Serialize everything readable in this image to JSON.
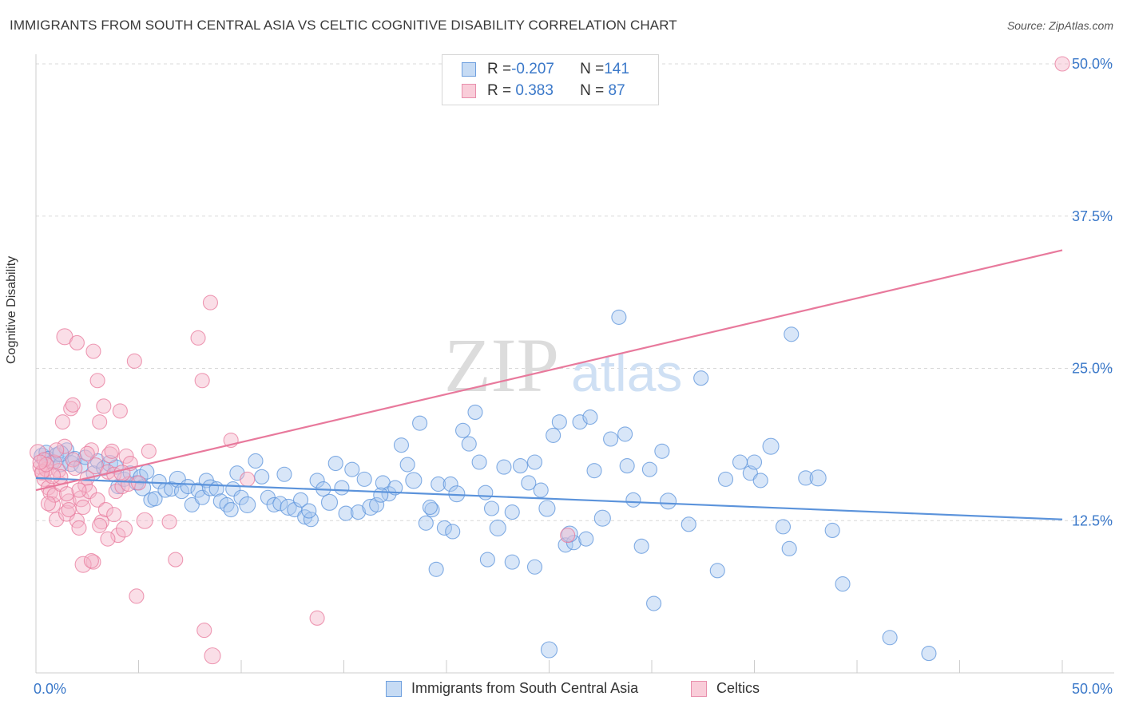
{
  "title": "IMMIGRANTS FROM SOUTH CENTRAL ASIA VS CELTIC COGNITIVE DISABILITY CORRELATION CHART",
  "source": "Source: ZipAtlas.com",
  "watermark": {
    "zip": "ZIP",
    "atlas": "atlas"
  },
  "legend": {
    "rows": [
      {
        "r_label": "R = ",
        "r_value": "-0.207",
        "n_label": "N = ",
        "n_value": "141",
        "color": "#a9c8ef"
      },
      {
        "r_label": "R = ",
        "r_value": " 0.383",
        "n_label": "N = ",
        "n_value": " 87",
        "color": "#f5b6c9"
      }
    ]
  },
  "bottom_legend": [
    {
      "label": "Immigrants from South Central Asia",
      "color": "#a9c8ef"
    },
    {
      "label": "Celtics",
      "color": "#f5b6c9"
    }
  ],
  "chart_data": {
    "type": "scatter",
    "title": "IMMIGRANTS FROM SOUTH CENTRAL ASIA VS CELTIC COGNITIVE DISABILITY CORRELATION CHART",
    "xlabel": "",
    "ylabel": "Cognitive Disability",
    "xlim": [
      0,
      50
    ],
    "ylim": [
      0,
      50
    ],
    "x_tick_labels": [
      "0.0%",
      "50.0%"
    ],
    "y_tick_values": [
      12.5,
      25.0,
      37.5,
      50.0
    ],
    "y_tick_labels": [
      "12.5%",
      "25.0%",
      "37.5%",
      "50.0%"
    ],
    "grid": true,
    "legend_position": "top-center",
    "series": [
      {
        "name": "Immigrants from South Central Asia",
        "color": "#5b93db",
        "fill": "#a9c8ef",
        "trend": {
          "x": [
            0,
            50
          ],
          "y": [
            16.0,
            12.6
          ]
        },
        "points": [
          [
            0.3,
            17.8
          ],
          [
            0.5,
            18.1
          ],
          [
            0.6,
            17.6
          ],
          [
            0.8,
            17.3
          ],
          [
            1.0,
            17.9
          ],
          [
            1.2,
            17.1
          ],
          [
            1.5,
            18.3
          ],
          [
            1.7,
            17.2
          ],
          [
            1.9,
            17.6
          ],
          [
            2.2,
            17.0
          ],
          [
            2.4,
            17.7
          ],
          [
            2.8,
            16.4
          ],
          [
            3.0,
            17.4
          ],
          [
            3.3,
            16.8
          ],
          [
            3.6,
            17.2
          ],
          [
            3.9,
            16.9
          ],
          [
            4.0,
            15.3
          ],
          [
            4.3,
            15.9
          ],
          [
            4.6,
            16.4
          ],
          [
            4.9,
            15.6
          ],
          [
            5.1,
            16.1
          ],
          [
            5.2,
            15.2
          ],
          [
            5.4,
            16.5
          ],
          [
            5.6,
            14.2
          ],
          [
            5.8,
            14.3
          ],
          [
            6.0,
            15.7
          ],
          [
            6.3,
            15.0
          ],
          [
            6.6,
            15.1
          ],
          [
            6.9,
            15.9
          ],
          [
            7.1,
            14.9
          ],
          [
            7.4,
            15.3
          ],
          [
            7.6,
            13.8
          ],
          [
            7.9,
            15.0
          ],
          [
            8.1,
            14.4
          ],
          [
            8.3,
            15.8
          ],
          [
            8.5,
            15.2
          ],
          [
            8.8,
            15.1
          ],
          [
            9.0,
            14.1
          ],
          [
            9.3,
            13.8
          ],
          [
            9.6,
            15.1
          ],
          [
            9.8,
            16.4
          ],
          [
            10.0,
            14.4
          ],
          [
            10.3,
            13.8
          ],
          [
            10.7,
            17.4
          ],
          [
            11.0,
            16.1
          ],
          [
            11.3,
            14.4
          ],
          [
            11.6,
            13.8
          ],
          [
            11.9,
            13.9
          ],
          [
            12.1,
            16.3
          ],
          [
            12.3,
            13.6
          ],
          [
            12.6,
            13.4
          ],
          [
            12.9,
            14.2
          ],
          [
            13.1,
            12.8
          ],
          [
            13.4,
            12.6
          ],
          [
            13.7,
            15.8
          ],
          [
            14.0,
            15.1
          ],
          [
            14.3,
            14.0
          ],
          [
            14.6,
            17.2
          ],
          [
            14.9,
            15.2
          ],
          [
            15.1,
            13.1
          ],
          [
            15.4,
            16.7
          ],
          [
            15.7,
            13.2
          ],
          [
            16.0,
            15.9
          ],
          [
            16.3,
            13.6
          ],
          [
            16.6,
            13.8
          ],
          [
            16.9,
            15.6
          ],
          [
            17.2,
            14.7
          ],
          [
            17.5,
            15.2
          ],
          [
            17.8,
            18.7
          ],
          [
            18.1,
            17.1
          ],
          [
            18.4,
            15.8
          ],
          [
            18.7,
            20.5
          ],
          [
            19.0,
            12.3
          ],
          [
            19.3,
            13.4
          ],
          [
            19.6,
            15.5
          ],
          [
            19.9,
            11.9
          ],
          [
            20.2,
            15.5
          ],
          [
            20.5,
            14.7
          ],
          [
            20.8,
            19.9
          ],
          [
            21.1,
            18.8
          ],
          [
            21.4,
            21.4
          ],
          [
            21.6,
            17.3
          ],
          [
            21.9,
            14.8
          ],
          [
            22.2,
            13.5
          ],
          [
            22.5,
            11.9
          ],
          [
            22.8,
            16.9
          ],
          [
            23.2,
            13.2
          ],
          [
            23.6,
            17.0
          ],
          [
            24.0,
            15.6
          ],
          [
            24.3,
            17.3
          ],
          [
            24.6,
            15.0
          ],
          [
            24.9,
            13.5
          ],
          [
            25.2,
            19.5
          ],
          [
            25.5,
            20.6
          ],
          [
            25.8,
            10.5
          ],
          [
            26.2,
            10.7
          ],
          [
            26.5,
            20.6
          ],
          [
            27.2,
            16.6
          ],
          [
            27.6,
            12.7
          ],
          [
            28.0,
            19.2
          ],
          [
            28.4,
            29.2
          ],
          [
            28.7,
            19.6
          ],
          [
            29.1,
            14.2
          ],
          [
            29.5,
            10.4
          ],
          [
            29.9,
            16.7
          ],
          [
            30.8,
            14.1
          ],
          [
            31.8,
            12.2
          ],
          [
            32.4,
            24.2
          ],
          [
            33.6,
            15.9
          ],
          [
            34.3,
            17.3
          ],
          [
            34.8,
            16.4
          ],
          [
            35.3,
            15.8
          ],
          [
            35.8,
            18.6
          ],
          [
            36.4,
            12.0
          ],
          [
            36.7,
            10.2
          ],
          [
            37.5,
            16.0
          ],
          [
            39.3,
            7.3
          ],
          [
            41.6,
            2.9
          ],
          [
            43.5,
            1.6
          ],
          [
            25.0,
            1.9
          ],
          [
            9.5,
            13.4
          ],
          [
            13.3,
            13.3
          ],
          [
            16.8,
            14.6
          ],
          [
            19.2,
            13.6
          ],
          [
            22.0,
            9.3
          ],
          [
            24.3,
            8.7
          ],
          [
            26.0,
            11.4
          ],
          [
            27.0,
            21.0
          ],
          [
            28.8,
            17.0
          ],
          [
            30.5,
            18.2
          ],
          [
            30.1,
            5.7
          ],
          [
            33.2,
            8.4
          ],
          [
            36.8,
            27.8
          ],
          [
            38.1,
            16.0
          ],
          [
            38.8,
            11.7
          ],
          [
            35.0,
            17.3
          ],
          [
            20.3,
            11.6
          ],
          [
            19.5,
            8.5
          ],
          [
            23.2,
            9.1
          ],
          [
            26.8,
            11.0
          ],
          [
            1.2,
            18.0
          ]
        ]
      },
      {
        "name": "Celtics",
        "color": "#e8799c",
        "fill": "#f5b6c9",
        "trend": {
          "x": [
            0,
            50
          ],
          "y": [
            15.0,
            34.7
          ]
        },
        "points": [
          [
            0.1,
            18.1
          ],
          [
            0.2,
            16.9
          ],
          [
            0.3,
            16.4
          ],
          [
            0.4,
            15.9
          ],
          [
            0.5,
            16.7
          ],
          [
            0.6,
            15.2
          ],
          [
            0.7,
            14.8
          ],
          [
            0.8,
            13.8
          ],
          [
            0.9,
            14.6
          ],
          [
            1.0,
            12.6
          ],
          [
            1.1,
            16.6
          ],
          [
            1.2,
            15.5
          ],
          [
            1.3,
            20.6
          ],
          [
            1.4,
            18.6
          ],
          [
            1.5,
            13.1
          ],
          [
            1.6,
            14.1
          ],
          [
            1.7,
            21.7
          ],
          [
            1.8,
            17.5
          ],
          [
            1.9,
            16.8
          ],
          [
            2.0,
            12.5
          ],
          [
            2.1,
            11.9
          ],
          [
            2.2,
            14.3
          ],
          [
            2.3,
            13.6
          ],
          [
            2.4,
            15.4
          ],
          [
            2.5,
            16.0
          ],
          [
            2.6,
            14.9
          ],
          [
            2.7,
            18.3
          ],
          [
            2.8,
            9.1
          ],
          [
            2.9,
            17.0
          ],
          [
            3.0,
            14.2
          ],
          [
            3.1,
            20.6
          ],
          [
            3.2,
            12.4
          ],
          [
            3.3,
            21.9
          ],
          [
            3.4,
            13.4
          ],
          [
            3.5,
            16.5
          ],
          [
            3.6,
            17.9
          ],
          [
            3.7,
            18.2
          ],
          [
            3.8,
            16.3
          ],
          [
            3.9,
            14.9
          ],
          [
            4.0,
            11.3
          ],
          [
            4.1,
            21.5
          ],
          [
            4.2,
            15.3
          ],
          [
            4.3,
            11.8
          ],
          [
            4.4,
            17.8
          ],
          [
            4.5,
            15.5
          ],
          [
            4.6,
            17.2
          ],
          [
            4.8,
            25.6
          ],
          [
            4.9,
            6.3
          ],
          [
            5.0,
            15.6
          ],
          [
            5.3,
            12.5
          ],
          [
            5.5,
            18.2
          ],
          [
            6.5,
            12.4
          ],
          [
            6.8,
            9.3
          ],
          [
            7.9,
            27.5
          ],
          [
            8.2,
            3.5
          ],
          [
            8.5,
            30.4
          ],
          [
            8.6,
            1.4
          ],
          [
            8.1,
            24.0
          ],
          [
            9.5,
            19.1
          ],
          [
            10.3,
            15.9
          ],
          [
            13.7,
            4.5
          ],
          [
            25.9,
            11.3
          ],
          [
            50.0,
            50.0
          ],
          [
            1.4,
            27.6
          ],
          [
            2.0,
            27.1
          ],
          [
            2.8,
            26.4
          ],
          [
            3.0,
            24.0
          ],
          [
            0.9,
            17.3
          ],
          [
            1.0,
            18.3
          ],
          [
            1.5,
            14.7
          ],
          [
            2.3,
            8.9
          ],
          [
            2.7,
            9.2
          ],
          [
            3.1,
            12.1
          ],
          [
            3.5,
            11.0
          ],
          [
            1.2,
            16.1
          ],
          [
            0.4,
            17.5
          ],
          [
            0.6,
            13.9
          ],
          [
            0.8,
            16.2
          ],
          [
            2.1,
            15.0
          ],
          [
            1.8,
            22.0
          ],
          [
            0.3,
            16.5
          ],
          [
            0.5,
            17.1
          ],
          [
            1.6,
            13.4
          ],
          [
            2.5,
            18.0
          ],
          [
            4.2,
            16.4
          ],
          [
            3.8,
            13.0
          ],
          [
            0.2,
            17.3
          ]
        ]
      }
    ]
  }
}
